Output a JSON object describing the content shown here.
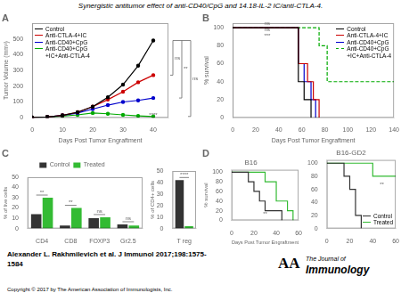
{
  "title": "Synergistic antitumor effect of anti-CD40/CpG and 14.18-IL-2 IC/anti-CTLA-4.",
  "annotations": [
    "Alexander L. Rakhmilevich et al. J Immunol 2017;198:1575-\n1584",
    "Copyright © 2017 by The American Association of Immunologists, Inc.",
    "AA",
    "The Journal of",
    "Immunology"
  ],
  "chart_data": [
    {
      "type": "line",
      "xlabel": "Days Post Tumor Engraftment",
      "ylabel": "Tumor Volume (mm³)",
      "x": [
        0,
        5,
        10,
        15,
        20,
        25,
        30,
        35,
        40
      ],
      "xlim": [
        0,
        45
      ],
      "xticks": [
        0,
        10,
        20,
        30,
        40
      ],
      "ylim": [
        0,
        600
      ],
      "yticks": [
        0,
        100,
        200,
        300,
        400,
        500
      ],
      "grid": false,
      "legend": "upper left",
      "marker": "circle",
      "series": [
        {
          "name": "Control",
          "color": "#000000",
          "values": [
            2,
            5,
            15,
            35,
            70,
            130,
            210,
            330,
            490
          ]
        },
        {
          "name": "Anti-CTLA-4+IC",
          "color": "#cc0000",
          "values": [
            2,
            5,
            15,
            35,
            70,
            115,
            165,
            225,
            270
          ]
        },
        {
          "name": "Anti-CD40+CpG",
          "color": "#0000cc",
          "values": [
            2,
            5,
            15,
            30,
            55,
            80,
            100,
            110,
            125
          ]
        },
        {
          "name": "Anti-CD40+CpG\n+IC+Anti-CTLA-4",
          "color": "#00aa00",
          "values": [
            2,
            4,
            10,
            18,
            30,
            25,
            18,
            12,
            8
          ]
        }
      ],
      "brackets": [
        {
          "label": "ns",
          "y_top": 490,
          "y_bot": 270
        },
        {
          "label": "**",
          "y_top": 490,
          "y_bot": 125
        },
        {
          "label": "ns",
          "y_top": 490,
          "y_bot": 8
        }
      ],
      "annotations": [
        {
          "text": "A"
        },
        {
          "text": "****",
          "x": 40,
          "y": 6
        }
      ]
    },
    {
      "type": "line",
      "xlabel": "Days Post Tumor Engraftment",
      "ylabel": "% survival",
      "xlim": [
        0,
        140
      ],
      "xticks": [
        0,
        20,
        40,
        60,
        80,
        100,
        120,
        140
      ],
      "ylim": [
        0,
        105
      ],
      "yticks": [
        0,
        20,
        40,
        60,
        80,
        100
      ],
      "grid": false,
      "legend": "upper right",
      "series": [
        {
          "name": "Control",
          "color": "#000000",
          "line_style": "solid",
          "x": [
            0,
            57,
            57,
            62,
            62,
            68,
            68,
            68
          ],
          "values": [
            100,
            100,
            40,
            40,
            20,
            20,
            0,
            0
          ]
        },
        {
          "name": "Anti-CTLA-4+IC",
          "color": "#cc0000",
          "line_style": "solid",
          "x": [
            0,
            57,
            57,
            65,
            65,
            70,
            70,
            75,
            75,
            75
          ],
          "values": [
            100,
            100,
            60,
            60,
            40,
            40,
            20,
            20,
            0,
            0
          ]
        },
        {
          "name": "Anti-CD40+CpG",
          "color": "#0000cc",
          "line_style": "solid",
          "x": [
            0,
            57,
            57,
            62,
            62,
            68,
            68,
            72,
            72,
            72
          ],
          "values": [
            100,
            100,
            60,
            60,
            40,
            40,
            20,
            20,
            0,
            0
          ]
        },
        {
          "name": "Anti-CD40+CpG\n+IC+Anti-CTLA-4",
          "color": "#00aa00",
          "line_style": "dashed",
          "x": [
            0,
            75,
            75,
            82,
            82,
            125,
            125,
            140
          ],
          "values": [
            100,
            100,
            80,
            80,
            40,
            40,
            40,
            40
          ]
        }
      ],
      "annotations": [
        {
          "text": "B"
        },
        {
          "text": "ns",
          "x": 30,
          "y": 103
        },
        {
          "text": "ns",
          "x": 30,
          "y": 96
        },
        {
          "text": "***",
          "x": 30,
          "y": 89
        }
      ]
    },
    {
      "type": "bar",
      "ylabel": "% of live cells",
      "categories": [
        "CD4",
        "CD8",
        "FOXP3",
        "Gr2.5"
      ],
      "ylim": [
        0,
        50
      ],
      "yticks": [
        0,
        10,
        20,
        30,
        40,
        50
      ],
      "grid": false,
      "legend": "top",
      "series": [
        {
          "name": "Control",
          "color": "#333333",
          "values": [
            14,
            3,
            10,
            4
          ]
        },
        {
          "name": "Treated",
          "color": "#33bb33",
          "values": [
            30,
            20,
            11,
            3
          ]
        }
      ],
      "sig_labels": [
        "**",
        "**",
        "ns",
        "ns"
      ],
      "annotations": [
        {
          "text": "C"
        }
      ]
    },
    {
      "type": "bar",
      "ylabel": "% of CD4+ cells",
      "categories": [
        "T reg"
      ],
      "ylim": [
        0,
        50
      ],
      "yticks": [
        0,
        10,
        20,
        30,
        40,
        50
      ],
      "grid": false,
      "series": [
        {
          "color": "#333333",
          "values": [
            42
          ]
        },
        {
          "color": "#33bb33",
          "values": [
            2
          ]
        }
      ],
      "sig_labels": [
        "****"
      ]
    },
    {
      "type": "line",
      "title": "B16",
      "xlabel": "Days Post Tumor Engraftment",
      "ylabel": "% survival",
      "xlim": [
        0,
        60
      ],
      "xticks": [
        0,
        20,
        40,
        60
      ],
      "ylim": [
        0,
        105
      ],
      "yticks": [
        0,
        20,
        40,
        60,
        80,
        100
      ],
      "grid": false,
      "series": [
        {
          "color": "#333333",
          "x": [
            0,
            15,
            15,
            20,
            20,
            25,
            25,
            30,
            30,
            40,
            40,
            45,
            45
          ],
          "values": [
            100,
            100,
            80,
            80,
            60,
            60,
            40,
            40,
            20,
            20,
            20,
            20,
            0
          ]
        },
        {
          "color": "#33bb33",
          "x": [
            0,
            30,
            30,
            40,
            40,
            50,
            50,
            55,
            55
          ],
          "values": [
            100,
            100,
            80,
            80,
            40,
            40,
            20,
            20,
            0
          ]
        }
      ],
      "annotations": [
        {
          "text": "D"
        },
        {
          "text": "**",
          "x": 30,
          "y": 10
        }
      ]
    },
    {
      "type": "line",
      "title": "B16-GD2",
      "xlim": [
        0,
        60
      ],
      "xticks": [
        0,
        20,
        40,
        60
      ],
      "ylim": [
        0,
        105
      ],
      "yticks": [
        0,
        20,
        40,
        60,
        80,
        100
      ],
      "grid": false,
      "legend": "lower right",
      "series": [
        {
          "name": "Control",
          "color": "#333333",
          "x": [
            0,
            15,
            15,
            20,
            20,
            25,
            25,
            30,
            30
          ],
          "values": [
            100,
            100,
            80,
            80,
            60,
            60,
            20,
            20,
            0
          ]
        },
        {
          "name": "Treated",
          "color": "#33bb33",
          "x": [
            0,
            40,
            40,
            50,
            50,
            60
          ],
          "values": [
            100,
            100,
            80,
            80,
            80,
            80
          ]
        }
      ],
      "annotations": [
        {
          "text": "**",
          "x": 48,
          "y": 65
        }
      ]
    }
  ]
}
